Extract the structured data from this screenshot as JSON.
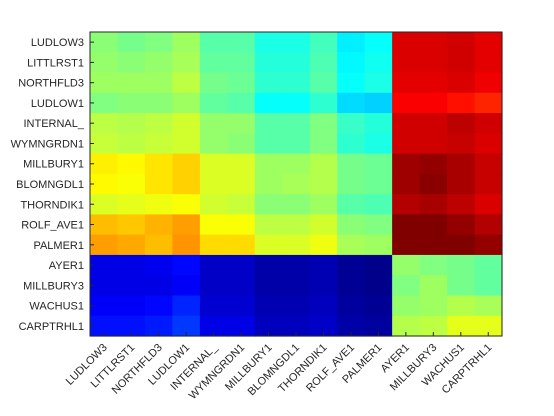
{
  "chart_data": {
    "type": "heatmap",
    "colormap": "jet",
    "colorbar": false,
    "grid": false,
    "clim": [
      0,
      1
    ],
    "title": "",
    "xlabel": "",
    "ylabel": "",
    "rows": [
      "LUDLOW3",
      "LITTLRST1",
      "NORTHFLD3",
      "LUDLOW1",
      "INTERNAL_",
      "WYMNGRDN1",
      "MILLBURY1",
      "BLOMNGDL1",
      "THORNDIK1",
      "ROLF_AVE1",
      "PALMER1",
      "AYER1",
      "MILLBURY3",
      "WACHUS1",
      "CARPTRHL1"
    ],
    "columns": [
      "LUDLOW3",
      "LITTLRST1",
      "NORTHFLD3",
      "LUDLOW1",
      "INTERNAL_",
      "WYMNGRDN1",
      "MILLBURY1",
      "BLOMNGDL1",
      "THORNDIK1",
      "ROLF_AVE1",
      "PALMER1",
      "AYER1",
      "MILLBURY3",
      "WACHUS1",
      "CARPTRHL1"
    ],
    "values": [
      [
        0.51,
        0.49,
        0.5,
        0.53,
        0.46,
        0.46,
        0.4,
        0.4,
        0.44,
        0.36,
        0.38,
        0.91,
        0.91,
        0.92,
        0.9
      ],
      [
        0.52,
        0.51,
        0.52,
        0.54,
        0.47,
        0.47,
        0.41,
        0.41,
        0.45,
        0.37,
        0.39,
        0.91,
        0.91,
        0.92,
        0.9
      ],
      [
        0.53,
        0.53,
        0.53,
        0.56,
        0.49,
        0.48,
        0.42,
        0.42,
        0.46,
        0.38,
        0.4,
        0.9,
        0.9,
        0.91,
        0.89
      ],
      [
        0.5,
        0.51,
        0.51,
        0.53,
        0.47,
        0.46,
        0.38,
        0.38,
        0.42,
        0.34,
        0.33,
        0.88,
        0.88,
        0.86,
        0.84
      ],
      [
        0.56,
        0.55,
        0.56,
        0.58,
        0.52,
        0.52,
        0.46,
        0.46,
        0.5,
        0.43,
        0.41,
        0.92,
        0.92,
        0.94,
        0.92
      ],
      [
        0.57,
        0.56,
        0.57,
        0.58,
        0.52,
        0.51,
        0.46,
        0.46,
        0.5,
        0.42,
        0.4,
        0.92,
        0.92,
        0.93,
        0.91
      ],
      [
        0.64,
        0.63,
        0.65,
        0.67,
        0.59,
        0.59,
        0.53,
        0.53,
        0.55,
        0.49,
        0.48,
        0.97,
        0.98,
        0.96,
        0.93
      ],
      [
        0.63,
        0.62,
        0.65,
        0.67,
        0.59,
        0.59,
        0.53,
        0.54,
        0.55,
        0.49,
        0.48,
        0.97,
        0.99,
        0.96,
        0.93
      ],
      [
        0.59,
        0.6,
        0.61,
        0.62,
        0.58,
        0.57,
        0.51,
        0.51,
        0.53,
        0.46,
        0.45,
        0.95,
        0.96,
        0.94,
        0.91
      ],
      [
        0.69,
        0.68,
        0.7,
        0.72,
        0.62,
        0.62,
        0.56,
        0.56,
        0.58,
        0.51,
        0.5,
        1.0,
        1.0,
        0.98,
        0.95
      ],
      [
        0.72,
        0.71,
        0.69,
        0.73,
        0.66,
        0.66,
        0.59,
        0.59,
        0.61,
        0.54,
        0.53,
        1.03,
        1.03,
        1.01,
        0.98
      ],
      [
        0.1,
        0.1,
        0.11,
        0.13,
        0.07,
        0.07,
        0.04,
        0.04,
        0.05,
        0.02,
        0.01,
        0.52,
        0.5,
        0.49,
        0.47
      ],
      [
        0.1,
        0.1,
        0.1,
        0.12,
        0.07,
        0.07,
        0.04,
        0.04,
        0.05,
        0.02,
        0.01,
        0.5,
        0.53,
        0.49,
        0.47
      ],
      [
        0.12,
        0.12,
        0.13,
        0.16,
        0.08,
        0.08,
        0.05,
        0.05,
        0.06,
        0.03,
        0.02,
        0.52,
        0.53,
        0.55,
        0.54
      ],
      [
        0.14,
        0.14,
        0.15,
        0.18,
        0.1,
        0.1,
        0.06,
        0.06,
        0.07,
        0.04,
        0.03,
        0.55,
        0.56,
        0.6,
        0.6
      ]
    ]
  }
}
